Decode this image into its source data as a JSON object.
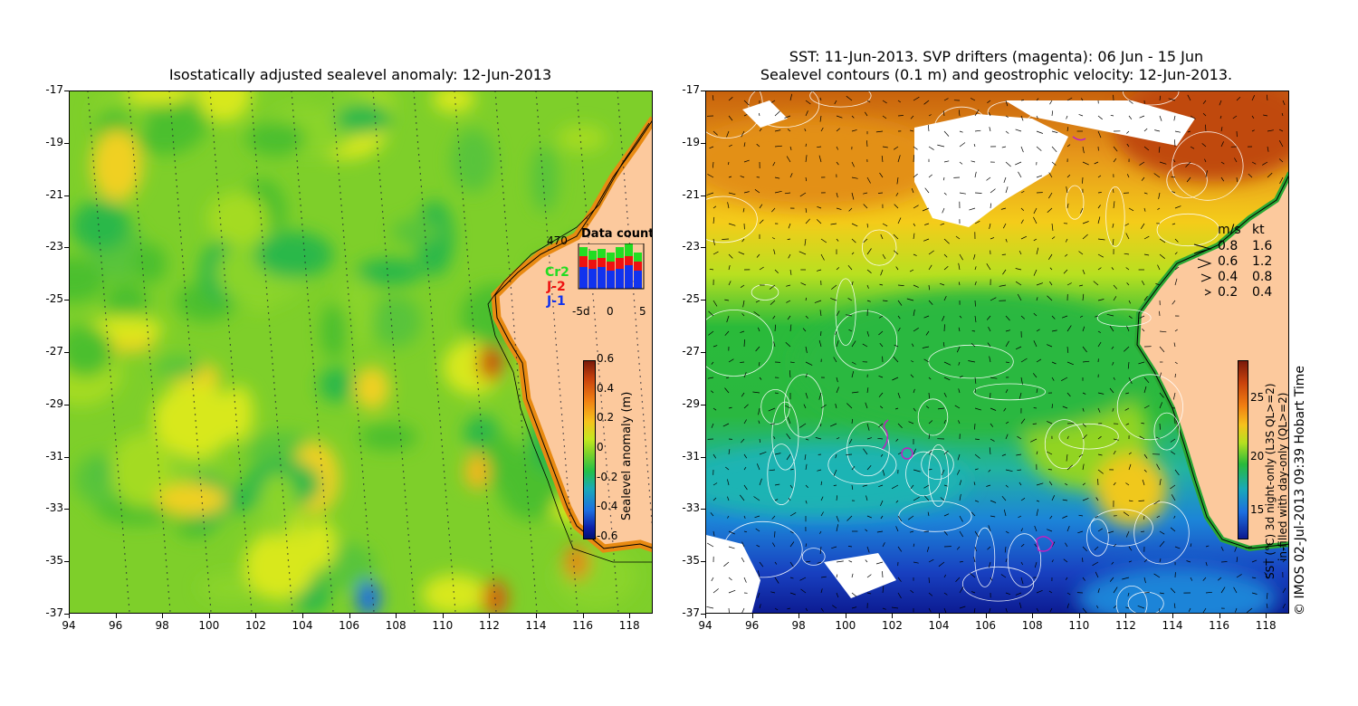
{
  "left": {
    "title": "Isostatically adjusted sealevel anomaly: 12-Jun-2013",
    "yticks": [
      "-17",
      "-19",
      "-21",
      "-23",
      "-25",
      "-27",
      "-29",
      "-31",
      "-33",
      "-35",
      "-37"
    ],
    "xticks": [
      "94",
      "96",
      "98",
      "100",
      "102",
      "104",
      "106",
      "108",
      "110",
      "112",
      "114",
      "116",
      "118"
    ],
    "datacount": {
      "title": "Data count",
      "max_label": "470",
      "series_labels": [
        "Cr2",
        "J-2",
        "J-1"
      ],
      "series_colors": [
        "#22dd22",
        "#ee1111",
        "#1133ee"
      ],
      "x_labels": [
        "-5d",
        "0",
        "5"
      ]
    },
    "colorbar": {
      "label": "Sealevel anomaly (m)",
      "ticks": [
        "0.6",
        "0.4",
        "0.2",
        "0",
        "-0.2",
        "-0.4",
        "-0.6"
      ]
    }
  },
  "right": {
    "title_line1": "SST: 11-Jun-2013. SVP drifters (magenta): 06 Jun - 15 Jun",
    "title_line2": "Sealevel contours (0.1 m) and geostrophic velocity: 12-Jun-2013.",
    "yticks": [
      "-17",
      "-19",
      "-21",
      "-23",
      "-25",
      "-27",
      "-29",
      "-31",
      "-33",
      "-35",
      "-37"
    ],
    "xticks": [
      "94",
      "96",
      "98",
      "100",
      "102",
      "104",
      "106",
      "108",
      "110",
      "112",
      "114",
      "116",
      "118"
    ],
    "velocity_legend": {
      "header_ms": "m/s",
      "header_kt": "kt",
      "rows": [
        {
          "ms": "0.8",
          "kt": "1.6"
        },
        {
          "ms": "0.6",
          "kt": "1.2"
        },
        {
          "ms": "0.4",
          "kt": "0.8"
        },
        {
          "ms": "0.2",
          "kt": "0.4"
        }
      ]
    },
    "colorbar": {
      "label_line1": "SST (°C) 3d night-only (L3S QL>=2)",
      "label_line2": "in-filled with day-only (QL>=2)",
      "ticks": [
        "25",
        "20",
        "15"
      ]
    },
    "credit": "© IMOS 02-Jul-2013 09:39 Hobart Time"
  },
  "colors": {
    "land": "#fcc99d",
    "cloud": "#ffffff",
    "contour": "#ffffff"
  }
}
